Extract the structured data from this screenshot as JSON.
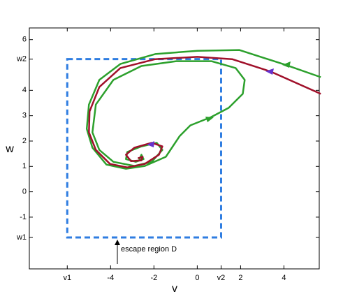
{
  "chart_data": {
    "type": "line",
    "xlabel": "v",
    "ylabel": "w",
    "annotation": "escape region D",
    "xlim": [
      -7.75,
      5.63
    ],
    "ylim": [
      -3.04,
      6.46
    ],
    "xticks": [
      {
        "value": -6,
        "label": "v1"
      },
      -4,
      -2,
      0,
      {
        "value": 1.1,
        "label": "v2"
      },
      2,
      4
    ],
    "yticks": [
      {
        "value": -1.8,
        "label": "w1"
      },
      -1,
      0,
      1,
      2,
      3,
      4,
      {
        "value": 5.23,
        "label": "w2"
      },
      6
    ],
    "region": {
      "color": "#2f7de1",
      "x": [
        -6,
        1.1
      ],
      "y": [
        -1.8,
        5.23
      ]
    },
    "series": [
      {
        "color": "#2ca02c",
        "x": [
          5.7,
          4.06,
          1.94,
          0,
          -1.94,
          -3.55,
          -4.52,
          -5,
          -5.1,
          -4.84,
          -4.19,
          -3.29,
          -2.42,
          -1.45,
          -0.81,
          -0.32,
          0.65,
          1.45,
          2.1,
          2.19,
          1.77,
          0.65,
          -0.97,
          -2.58,
          -3.87,
          -4.68,
          -4.84,
          -4.52,
          -3.87,
          -2.9,
          -2.1,
          -1.61,
          -1.87,
          -2.58,
          -3.23,
          -3.29,
          -2.84,
          -2.48,
          -2.58,
          -2.68
        ],
        "values": [
          4.52,
          5.01,
          5.59,
          5.56,
          5.43,
          5.04,
          4.41,
          3.44,
          2.48,
          1.74,
          1.07,
          0.91,
          1.02,
          1.38,
          2.2,
          2.62,
          2.95,
          3.31,
          3.86,
          4.41,
          4.88,
          5.15,
          5.15,
          4.96,
          4.41,
          3.44,
          2.34,
          1.65,
          1.18,
          1.02,
          1.18,
          1.65,
          1.93,
          1.79,
          1.57,
          1.29,
          1.18,
          1.29,
          1.46,
          1.24
        ]
      },
      {
        "color": "#a0102a",
        "x": [
          5.7,
          3.39,
          1.61,
          0,
          -1.94,
          -3.55,
          -4.52,
          -4.97,
          -5,
          -4.68,
          -4.03,
          -3.23,
          -2.42,
          -1.77,
          -1.61,
          -2.1,
          -2.9,
          -3.29,
          -3.06,
          -2.58,
          -2.52,
          -2.74
        ],
        "values": [
          3.86,
          4.74,
          5.23,
          5.32,
          5.23,
          4.88,
          4.13,
          3.17,
          2.34,
          1.65,
          1.1,
          0.96,
          1.1,
          1.46,
          1.79,
          1.93,
          1.74,
          1.46,
          1.21,
          1.24,
          1.38,
          1.32
        ]
      }
    ]
  }
}
